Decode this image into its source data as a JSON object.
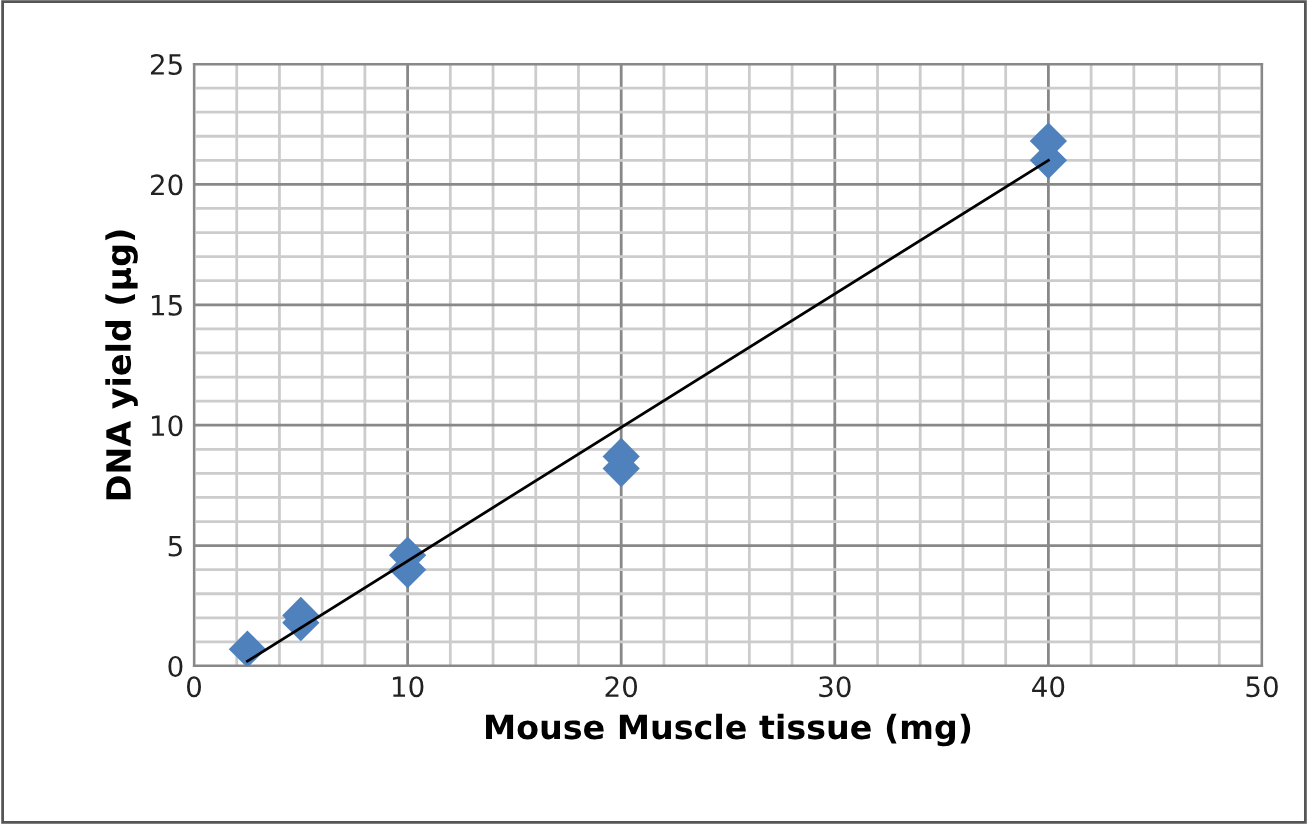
{
  "chart_data": {
    "type": "scatter",
    "xlabel": "Mouse Muscle tissue (mg)",
    "ylabel": "DNA yield (µg)",
    "xlim": [
      0,
      50
    ],
    "ylim": [
      0,
      25
    ],
    "xticks": [
      0,
      {
        "value": 2,
        "label": null
      },
      {
        "value": 4,
        "label": null
      },
      {
        "value": 6,
        "label": null
      },
      {
        "value": 8,
        "label": null
      },
      10,
      {
        "value": 12,
        "label": null
      },
      {
        "value": 14,
        "label": null
      },
      {
        "value": 16,
        "label": null
      },
      {
        "value": 18,
        "label": null
      },
      20,
      {
        "value": 22,
        "label": null
      },
      {
        "value": 24,
        "label": null
      },
      {
        "value": 26,
        "label": null
      },
      {
        "value": 28,
        "label": null
      },
      30,
      {
        "value": 32,
        "label": null
      },
      {
        "value": 34,
        "label": null
      },
      {
        "value": 36,
        "label": null
      },
      {
        "value": 38,
        "label": null
      },
      40,
      {
        "value": 42,
        "label": null
      },
      {
        "value": 44,
        "label": null
      },
      {
        "value": 46,
        "label": null
      },
      {
        "value": 48,
        "label": null
      },
      50
    ],
    "yticks": [
      0,
      {
        "value": 1,
        "label": null
      },
      {
        "value": 2,
        "label": null
      },
      {
        "value": 3,
        "label": null
      },
      {
        "value": 4,
        "label": null
      },
      5,
      {
        "value": 6,
        "label": null
      },
      {
        "value": 7,
        "label": null
      },
      {
        "value": 8,
        "label": null
      },
      {
        "value": 9,
        "label": null
      },
      10,
      {
        "value": 11,
        "label": null
      },
      {
        "value": 12,
        "label": null
      },
      {
        "value": 13,
        "label": null
      },
      {
        "value": 14,
        "label": null
      },
      15,
      {
        "value": 16,
        "label": null
      },
      {
        "value": 17,
        "label": null
      },
      {
        "value": 18,
        "label": null
      },
      {
        "value": 19,
        "label": null
      },
      20,
      {
        "value": 21,
        "label": null
      },
      {
        "value": 22,
        "label": null
      },
      {
        "value": 23,
        "label": null
      },
      {
        "value": 24,
        "label": null
      },
      25
    ],
    "grid": true,
    "legend": false,
    "series": [
      {
        "color": "#4f81bd",
        "marker": "diamond",
        "x": [
          2.5,
          5,
          5,
          10,
          10,
          20,
          20,
          40,
          40
        ],
        "values": [
          0.7,
          1.8,
          2.1,
          4.0,
          4.6,
          8.2,
          8.7,
          21.0,
          21.8
        ]
      },
      {
        "type": "line",
        "color": "#000000",
        "marker": "none",
        "line_style": "solid",
        "x": [
          2.5,
          40
        ],
        "values": [
          0.2,
          21.0
        ]
      }
    ]
  }
}
